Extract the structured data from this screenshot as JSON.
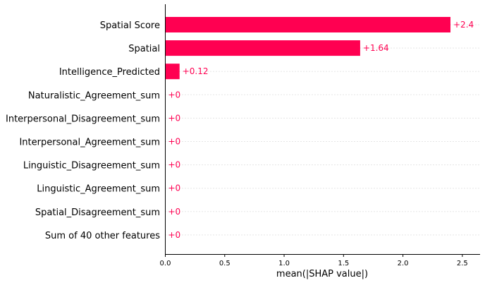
{
  "chart_data": {
    "type": "bar",
    "orientation": "horizontal",
    "categories": [
      "Spatial Score",
      "Spatial",
      "Intelligence_Predicted",
      "Naturalistic_Agreement_sum",
      "Interpersonal_Disagreement_sum",
      "Interpersonal_Agreement_sum",
      "Linguistic_Disagreement_sum",
      "Linguistic_Agreement_sum",
      "Spatial_Disagreement_sum",
      "Sum of 40 other features"
    ],
    "values": [
      2.4,
      1.64,
      0.12,
      0,
      0,
      0,
      0,
      0,
      0,
      0
    ],
    "value_labels": [
      "+2.4",
      "+1.64",
      "+0.12",
      "+0",
      "+0",
      "+0",
      "+0",
      "+0",
      "+0",
      "+0"
    ],
    "xlabel": "mean(|SHAP value|)",
    "ylabel": "",
    "xlim": [
      0,
      2.65
    ],
    "xticks": [
      0.0,
      0.5,
      1.0,
      1.5,
      2.0,
      2.5
    ],
    "xtick_labels": [
      "0.0",
      "0.5",
      "1.0",
      "1.5",
      "2.0",
      "2.5"
    ],
    "grid": "horizontal dotted row lines",
    "colors": {
      "bar": "#ff0051",
      "value_label": "#ff0051",
      "axis": "#000000",
      "gridline": "#cccccc"
    }
  }
}
